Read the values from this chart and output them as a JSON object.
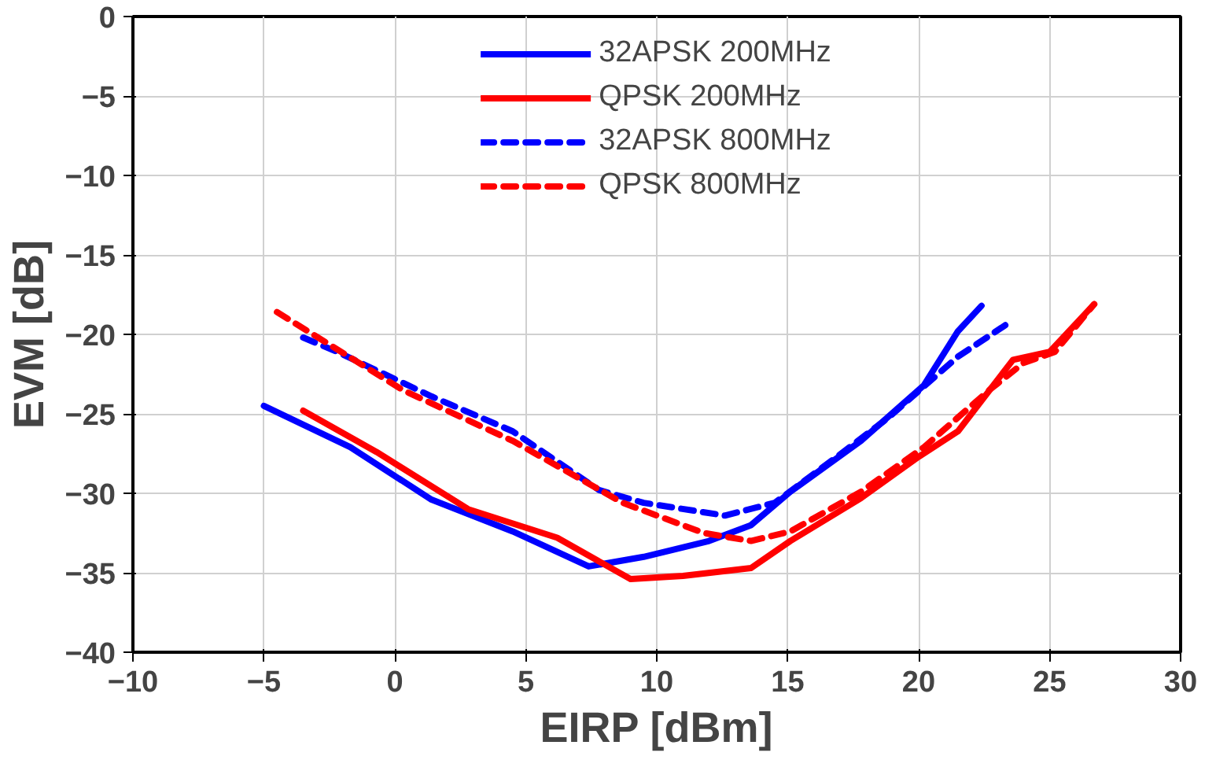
{
  "chart_data": {
    "type": "line",
    "xlabel": "EIRP [dBm]",
    "ylabel": "EVM [dB]",
    "xlim": [
      -10,
      30
    ],
    "ylim": [
      -40,
      0
    ],
    "xticks": [
      -10,
      -5,
      0,
      5,
      10,
      15,
      20,
      25,
      30
    ],
    "yticks": [
      -40,
      -35,
      -30,
      -25,
      -20,
      -15,
      -10,
      -5,
      0
    ],
    "grid": true,
    "legend": "top",
    "marker": "none",
    "series": [
      {
        "name": "32APSK 200MHz",
        "color": "#0000ff",
        "line_style": "solid",
        "x": [
          -5,
          -1.7,
          1.4,
          4.5,
          7.4,
          9.5,
          12,
          13.6,
          15.1,
          17.8,
          20.2,
          21.5,
          22.4
        ],
        "values": [
          -24.5,
          -27.1,
          -30.4,
          -32.4,
          -34.6,
          -34.0,
          -33.0,
          -32.0,
          -29.9,
          -26.7,
          -23.2,
          -19.8,
          -18.2
        ]
      },
      {
        "name": "QPSK 200MHz",
        "color": "#ff0000",
        "line_style": "solid",
        "x": [
          -3.5,
          -0.7,
          2.8,
          6.2,
          9,
          11,
          13.6,
          15.1,
          17.8,
          20,
          21.5,
          23.6,
          25,
          26.7
        ],
        "values": [
          -24.8,
          -27.4,
          -31.0,
          -32.8,
          -35.4,
          -35.2,
          -34.7,
          -33.0,
          -30.3,
          -27.7,
          -26.1,
          -21.6,
          -21.1,
          -18.1
        ]
      },
      {
        "name": "32APSK 800MHz",
        "color": "#0000ff",
        "line_style": "dashed",
        "x": [
          -3.5,
          -2.2,
          1.4,
          4.5,
          7.8,
          9.5,
          12.6,
          14.5,
          16.8,
          18.8,
          21.5,
          23.6
        ],
        "values": [
          -20.2,
          -21.1,
          -23.9,
          -26.1,
          -29.8,
          -30.6,
          -31.4,
          -30.6,
          -27.8,
          -25.3,
          -21.4,
          -19.1
        ]
      },
      {
        "name": "QPSK 800MHz",
        "color": "#ff0000",
        "line_style": "dashed",
        "x": [
          -4.5,
          0.3,
          4.5,
          8.7,
          11.8,
          13.6,
          15.1,
          17.8,
          20.2,
          22.7,
          24,
          25.2,
          26.7
        ],
        "values": [
          -18.6,
          -23.5,
          -26.7,
          -30.6,
          -32.5,
          -33.0,
          -32.4,
          -29.9,
          -27.1,
          -23.5,
          -21.8,
          -21.1,
          -18.1
        ]
      }
    ]
  }
}
